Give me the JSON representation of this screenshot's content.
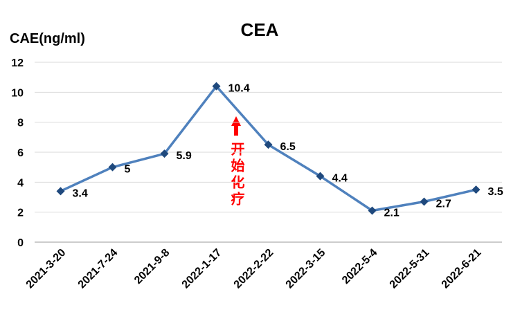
{
  "chart_data": {
    "type": "line",
    "title": "CEA",
    "y_label": "CAE(ng/ml)",
    "categories": [
      "2021-3-20",
      "2021-7-24",
      "2021-9-8",
      "2022-1-17",
      "2022-2-22",
      "2022-3-15",
      "2022-5-4",
      "2022-5-31",
      "2022-6-21"
    ],
    "series": [
      {
        "name": "CEA",
        "color": "#4f81bd",
        "values": [
          3.4,
          5,
          5.9,
          10.4,
          6.5,
          4.4,
          2.1,
          2.7,
          3.5
        ]
      }
    ],
    "ylim": [
      0,
      12
    ],
    "yticks": [
      0,
      2,
      4,
      6,
      8,
      10,
      12
    ],
    "grid": true,
    "annotation": "开始化疗"
  }
}
